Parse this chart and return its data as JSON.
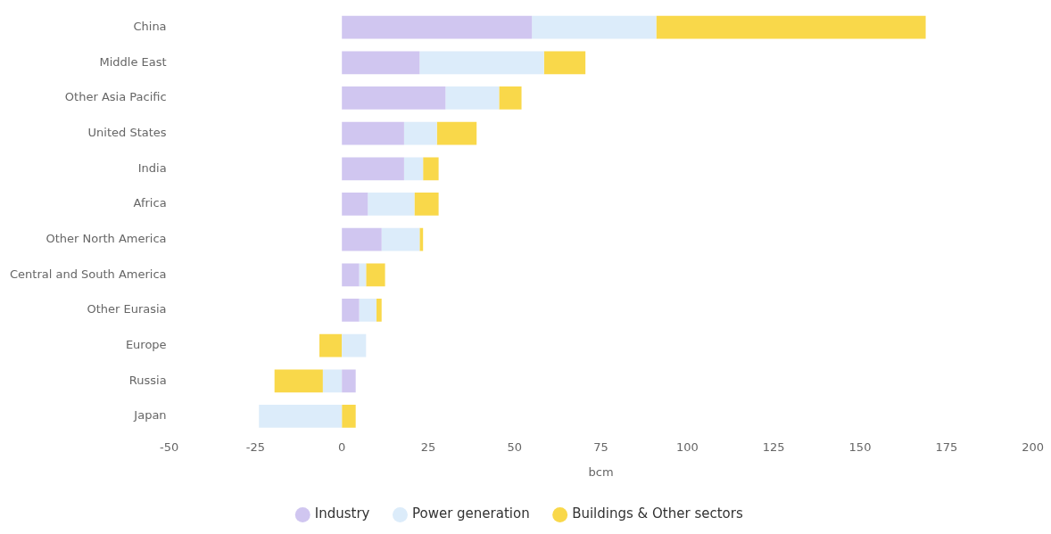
{
  "chart_data": {
    "type": "bar",
    "orientation": "horizontal",
    "stacked": true,
    "xlabel": "bcm",
    "categories": [
      "China",
      "Middle East",
      "Other Asia Pacific",
      "United States",
      "India",
      "Africa",
      "Other North America",
      "Central and South America",
      "Other Eurasia",
      "Europe",
      "Russia",
      "Japan"
    ],
    "series": [
      {
        "name": "Industry",
        "color": "#d0c6f0",
        "values": [
          55,
          22.5,
          30,
          18,
          18,
          7.5,
          11.5,
          5,
          5,
          0,
          4,
          0
        ]
      },
      {
        "name": "Power generation",
        "color": "#dcecfa",
        "values": [
          36,
          36,
          15.5,
          9.5,
          5.5,
          13.5,
          11,
          2,
          5,
          7,
          -5.5,
          -24
        ]
      },
      {
        "name": "Buildings & Other sectors",
        "color": "#f9d84a",
        "values": [
          78,
          12,
          6.5,
          11.5,
          4.5,
          7,
          1,
          5.5,
          1.5,
          -6.5,
          -14,
          4
        ]
      }
    ],
    "xlim": [
      -50,
      200
    ],
    "xticks": [
      -50,
      -25,
      0,
      25,
      50,
      75,
      100,
      125,
      150,
      175,
      200
    ],
    "grid": false,
    "legend": "bottom"
  }
}
